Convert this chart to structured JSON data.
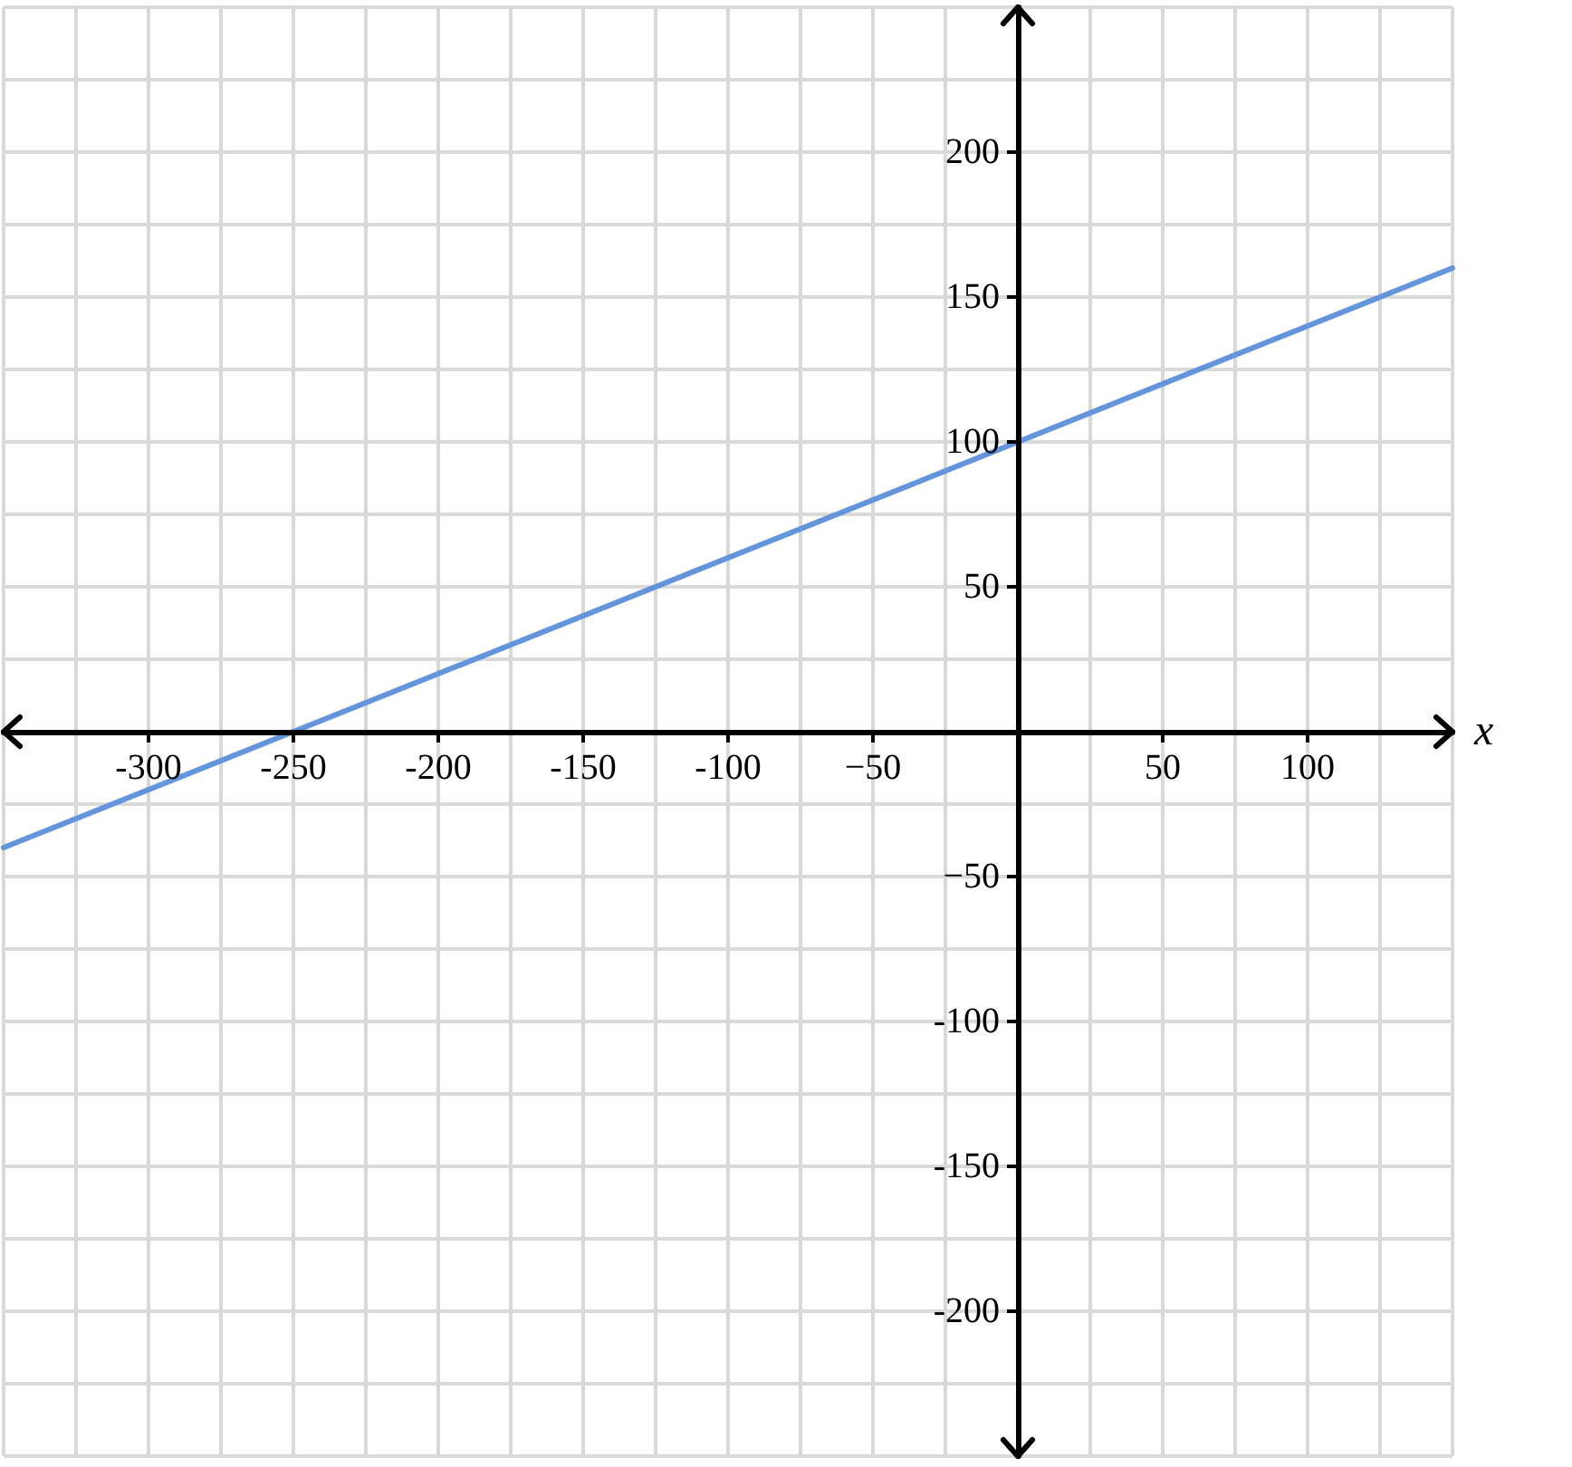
{
  "chart_data": {
    "type": "line",
    "xlabel": "x",
    "x": [
      -350,
      150
    ],
    "series": [
      {
        "color": "#6394dc",
        "values": [
          -40,
          160
        ]
      }
    ],
    "xlim": [
      -350,
      150
    ],
    "ylim": [
      -250,
      250
    ],
    "xticks": [
      {
        "value": -350,
        "label": null
      },
      {
        "value": -325,
        "label": null
      },
      -300,
      {
        "value": -275,
        "label": null
      },
      -250,
      {
        "value": -225,
        "label": null
      },
      -200,
      {
        "value": -175,
        "label": null
      },
      -150,
      {
        "value": -125,
        "label": null
      },
      -100,
      {
        "value": -75,
        "label": null
      },
      {
        "value": -50,
        "label": "−50"
      },
      {
        "value": -25,
        "label": null
      },
      {
        "value": 0,
        "label": null
      },
      {
        "value": 25,
        "label": null
      },
      50,
      {
        "value": 75,
        "label": null
      },
      100,
      {
        "value": 125,
        "label": null
      },
      {
        "value": 150,
        "label": null
      }
    ],
    "yticks": [
      {
        "value": -250,
        "label": null
      },
      {
        "value": -225,
        "label": null
      },
      -200,
      {
        "value": -175,
        "label": null
      },
      -150,
      {
        "value": -125,
        "label": null
      },
      -100,
      {
        "value": -75,
        "label": null
      },
      {
        "value": -50,
        "label": "−50"
      },
      {
        "value": -25,
        "label": null
      },
      {
        "value": 0,
        "label": null
      },
      {
        "value": 25,
        "label": null
      },
      50,
      {
        "value": 75,
        "label": null
      },
      100,
      {
        "value": 125,
        "label": null
      },
      150,
      {
        "value": 175,
        "label": null
      },
      200,
      {
        "value": 225,
        "label": null
      },
      {
        "value": 250,
        "label": null
      }
    ],
    "grid": true,
    "marker": "none",
    "line_style": "solid"
  }
}
